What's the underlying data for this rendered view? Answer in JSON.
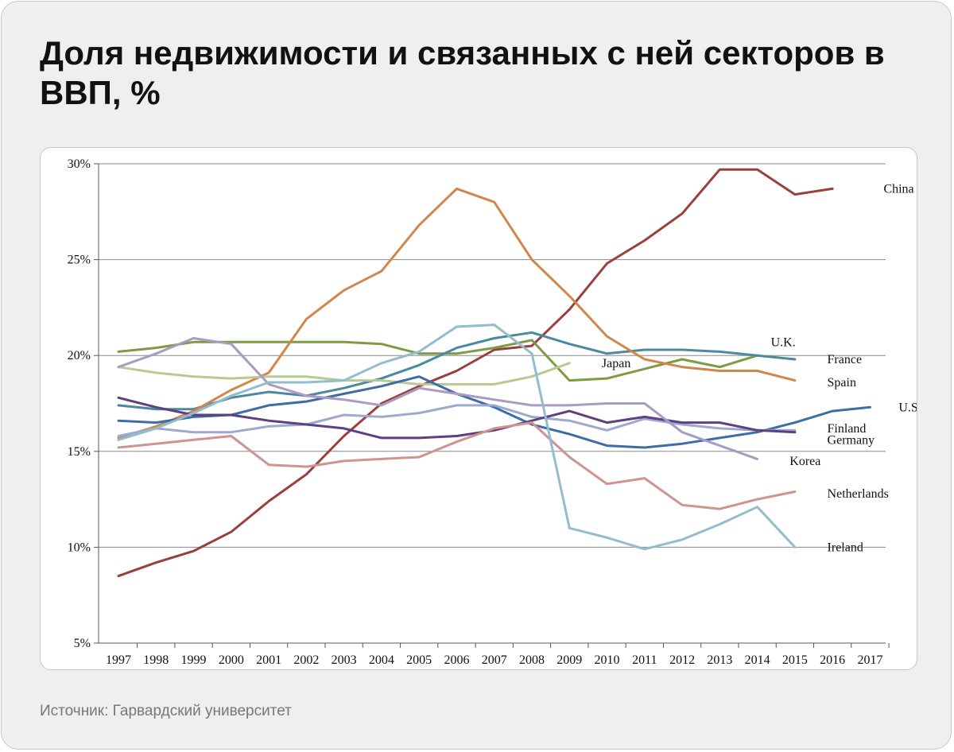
{
  "title": "Доля недвижимости и связанных с ней секторов в ВВП, %",
  "source": "Источник: Гарвардский университет",
  "chart_data": {
    "type": "line",
    "title": "Доля недвижимости и связанных с ней секторов в ВВП, %",
    "xlabel": "",
    "ylabel": "",
    "x": [
      "1997",
      "1998",
      "1999",
      "2000",
      "2001",
      "2002",
      "2003",
      "2004",
      "2005",
      "2006",
      "2007",
      "2008",
      "2009",
      "2010",
      "2011",
      "2012",
      "2013",
      "2014",
      "2015",
      "2016",
      "2017"
    ],
    "ylim": [
      5,
      30
    ],
    "yticks": [
      30,
      25,
      20,
      15,
      10,
      5
    ],
    "ytick_labels": [
      "30%",
      "25%",
      "20%",
      "15%",
      "10%",
      "5%"
    ],
    "grid": "horizontal",
    "series": [
      {
        "name": "China",
        "color": "#9b3f3c",
        "label_year": 2017.0,
        "label_value": 28.7,
        "values": [
          8.5,
          9.2,
          9.8,
          10.8,
          12.4,
          13.8,
          15.8,
          17.5,
          18.4,
          19.2,
          20.3,
          20.5,
          22.4,
          24.8,
          26.0,
          27.4,
          29.7,
          29.7,
          28.4,
          28.7,
          null
        ]
      },
      {
        "name": "U.K.",
        "color": "#7f9a44",
        "label_year": 2014.0,
        "label_value": 20.7,
        "values": [
          20.2,
          20.4,
          20.7,
          20.7,
          20.7,
          20.7,
          20.7,
          20.6,
          20.1,
          20.1,
          20.4,
          20.8,
          18.7,
          18.8,
          19.3,
          19.8,
          19.4,
          20.0,
          null,
          null,
          null
        ]
      },
      {
        "name": "France",
        "color": "#4a8aa0",
        "label_year": 2015.5,
        "label_value": 19.8,
        "values": [
          17.4,
          17.2,
          17.2,
          17.8,
          18.1,
          17.9,
          18.3,
          18.8,
          19.5,
          20.4,
          20.9,
          21.2,
          20.6,
          20.1,
          20.3,
          20.3,
          20.2,
          20.0,
          19.8,
          null,
          null
        ]
      },
      {
        "name": "Spain",
        "color": "#d1874a",
        "label_year": 2015.5,
        "label_value": 18.6,
        "values": [
          15.7,
          16.3,
          17.1,
          18.2,
          19.1,
          21.9,
          23.4,
          24.4,
          26.8,
          28.7,
          28.0,
          25.0,
          23.1,
          21.0,
          19.8,
          19.4,
          19.2,
          19.2,
          18.7,
          null,
          null
        ]
      },
      {
        "name": "Japan",
        "color": "#b7ca94",
        "label_year": 2009.5,
        "label_value": 19.6,
        "values": [
          19.4,
          19.1,
          18.9,
          18.8,
          18.9,
          18.9,
          18.7,
          18.7,
          18.5,
          18.5,
          18.5,
          18.9,
          19.6,
          null,
          null,
          null,
          null,
          null,
          null,
          null,
          null
        ]
      },
      {
        "name": "U.S.",
        "color": "#3e6da5",
        "label_year": 2017.4,
        "label_value": 17.3,
        "values": [
          16.6,
          16.5,
          16.8,
          16.9,
          17.4,
          17.6,
          18.0,
          18.4,
          18.9,
          18.0,
          17.3,
          16.4,
          15.9,
          15.3,
          15.2,
          15.4,
          15.7,
          16.0,
          16.5,
          17.1,
          17.3
        ]
      },
      {
        "name": "Finland",
        "color": "#9ea9cf",
        "label_year": 2015.5,
        "label_value": 16.2,
        "values": [
          15.8,
          16.2,
          16.0,
          16.0,
          16.3,
          16.4,
          16.9,
          16.8,
          17.0,
          17.4,
          17.4,
          16.8,
          16.6,
          16.1,
          16.7,
          16.4,
          16.2,
          16.1,
          16.1,
          null,
          null
        ]
      },
      {
        "name": "Germany",
        "color": "#5e3f7f",
        "label_year": 2015.5,
        "label_value": 15.6,
        "values": [
          17.8,
          17.3,
          16.9,
          16.9,
          16.6,
          16.4,
          16.2,
          15.7,
          15.7,
          15.8,
          16.1,
          16.6,
          17.1,
          16.5,
          16.8,
          16.5,
          16.5,
          16.1,
          16.0,
          null,
          null
        ]
      },
      {
        "name": "Korea",
        "color": "#ab9ac2",
        "label_year": 2014.5,
        "label_value": 14.5,
        "values": [
          19.4,
          20.1,
          20.9,
          20.6,
          18.5,
          17.9,
          17.7,
          17.4,
          18.3,
          18.0,
          17.7,
          17.4,
          17.4,
          17.5,
          17.5,
          16.0,
          15.3,
          14.6,
          null,
          null,
          null
        ]
      },
      {
        "name": "Netherlands",
        "color": "#cf9390",
        "label_year": 2015.5,
        "label_value": 12.8,
        "values": [
          15.2,
          15.4,
          15.6,
          15.8,
          14.3,
          14.2,
          14.5,
          14.6,
          14.7,
          15.5,
          16.2,
          16.5,
          14.7,
          13.3,
          13.6,
          12.2,
          12.0,
          12.5,
          12.9,
          null,
          null
        ]
      },
      {
        "name": "Ireland",
        "color": "#93bccd",
        "label_year": 2015.5,
        "label_value": 10.0,
        "values": [
          15.6,
          16.2,
          17.0,
          17.9,
          18.6,
          18.6,
          18.7,
          19.6,
          20.2,
          21.5,
          21.6,
          20.1,
          11.0,
          10.5,
          9.9,
          10.4,
          11.2,
          12.1,
          10.0,
          null,
          null
        ]
      }
    ]
  }
}
